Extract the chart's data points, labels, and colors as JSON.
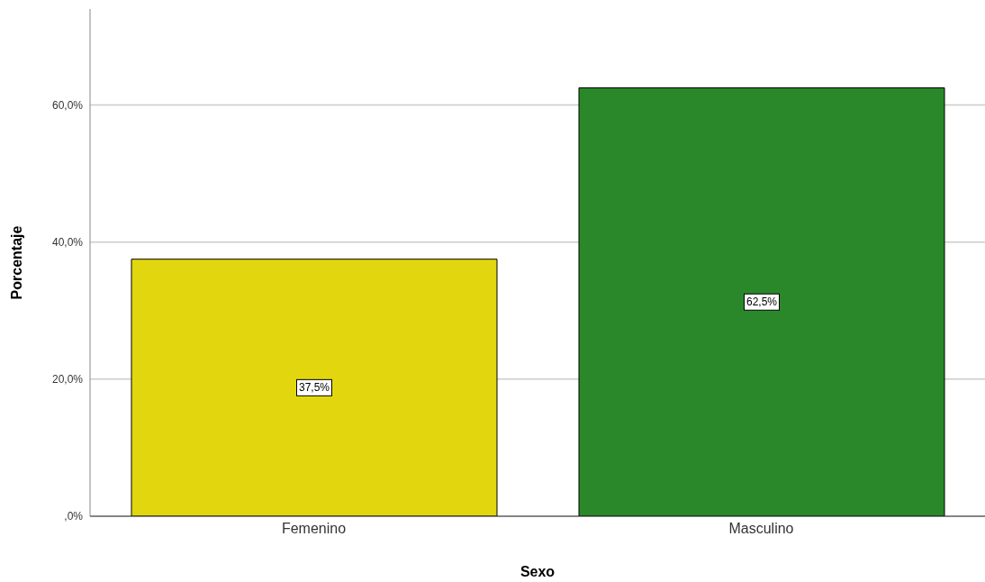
{
  "chart_data": {
    "type": "bar",
    "xlabel": "Sexo",
    "ylabel": "Porcentaje",
    "categories": [
      "Femenino",
      "Masculino"
    ],
    "values": [
      37.5,
      62.5
    ],
    "colors": [
      "#e2d70f",
      "#2a882a"
    ],
    "value_labels": [
      "37,5%",
      "62,5%"
    ],
    "ylim": [
      0,
      74
    ],
    "yticks": [
      {
        "value": 0,
        "label": ",0%"
      },
      {
        "value": 20,
        "label": "20,0%"
      },
      {
        "value": 40,
        "label": "40,0%"
      },
      {
        "value": 60,
        "label": "60,0%"
      }
    ],
    "grid": "y"
  }
}
